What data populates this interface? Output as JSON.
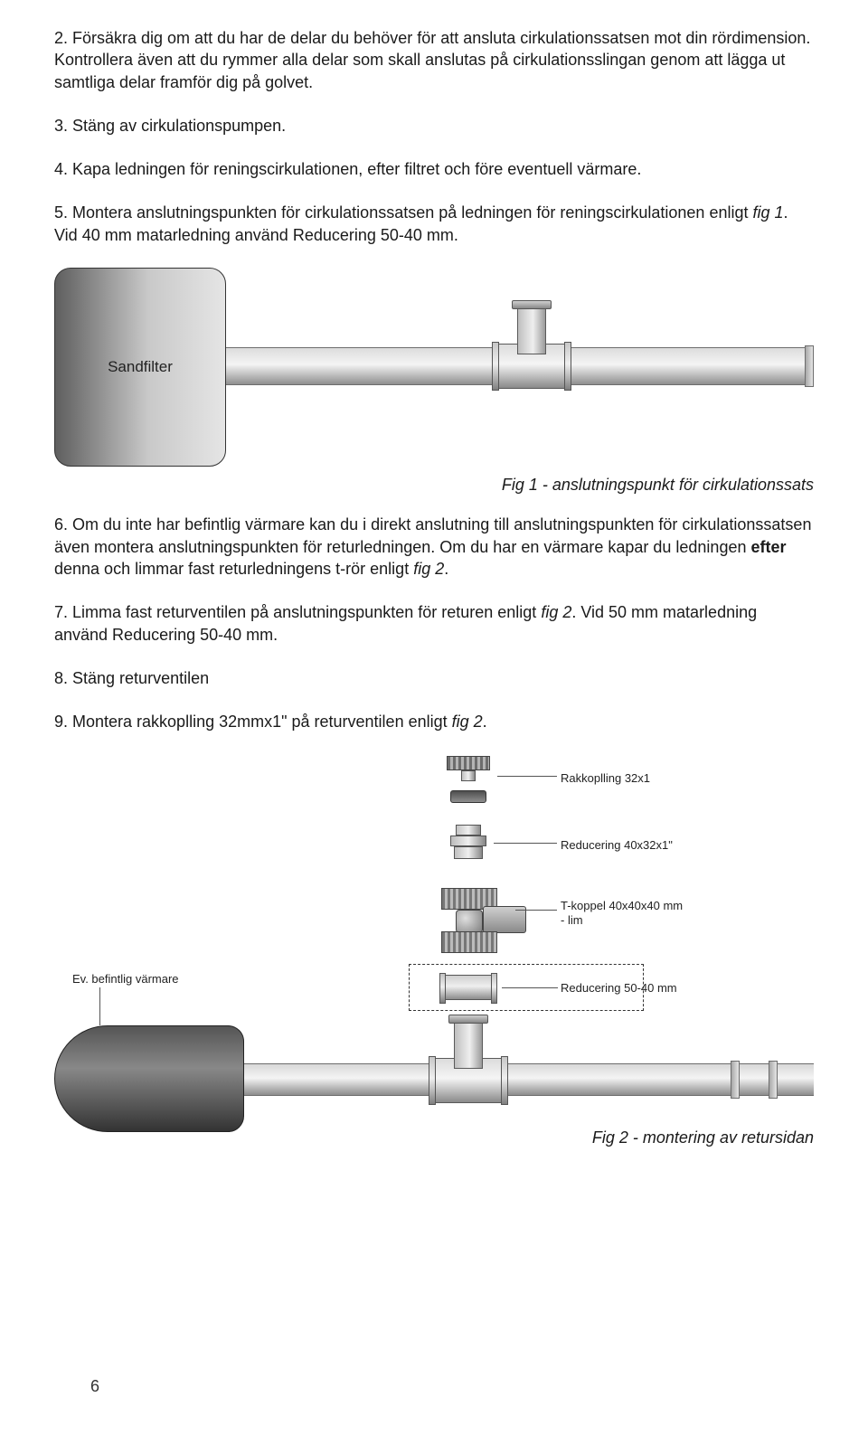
{
  "paragraphs": {
    "p2": "2. Försäkra dig om att du har de delar du behöver för att ansluta cirkulationssatsen mot din rördimension. Kontrollera även att du rymmer alla delar som skall anslutas på cirkulationsslingan genom att lägga ut samtliga delar framför dig på golvet.",
    "p3": "3. Stäng av cirkulationspumpen.",
    "p4": "4. Kapa ledningen för reningscirkulationen, efter filtret och före eventuell värmare.",
    "p5a": "5. Montera anslutningspunkten för cirkulationssatsen på ledningen för reningscirkulationen enligt ",
    "p5b": ". Vid 40 mm matarledning använd Reducering 50-40 mm.",
    "fig1ref": "fig 1",
    "p6a": "6. Om du inte har befintlig värmare kan du i direkt anslutning till anslutningspunkten för cirkulationssatsen även montera anslutningspunkten för returledningen. Om du har en värmare kapar du ledningen ",
    "p6b": " denna och limmar fast returledningens t-rör enligt ",
    "p6c": ".",
    "efter": "efter",
    "fig2ref": "fig 2",
    "p7a": "7. Limma fast returventilen på anslutningspunkten för returen enligt ",
    "p7b": ". Vid 50 mm matarledning använd Reducering 50-40 mm.",
    "p8": "8. Stäng returventilen",
    "p9a": "9. Montera rakkoplling 32mmx1\" på returventilen enligt ",
    "p9b": "."
  },
  "captions": {
    "fig1": "Fig 1 - anslutningspunkt för cirkulationssats",
    "fig2": "Fig 2 - montering av retursidan"
  },
  "labels": {
    "sandfilter": "Sandfilter",
    "evbef": "Ev. befintlig värmare",
    "rak": "Rakkoplling 32x1",
    "red4032": "Reducering 40x32x1\"",
    "tkoppel": "T-koppel 40x40x40 mm\n- lim",
    "red5040": "Reducering 50-40 mm"
  },
  "page": "6"
}
